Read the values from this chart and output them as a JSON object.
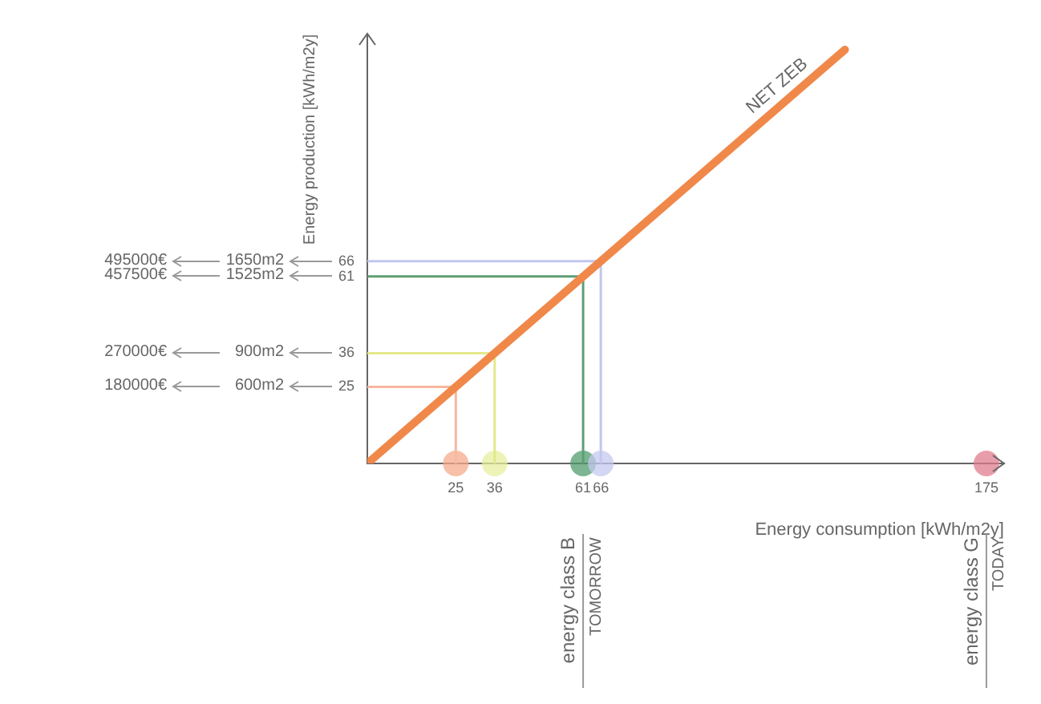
{
  "chart_data": {
    "type": "line",
    "xlabel": "Energy consumption [kWh/m2y]",
    "ylabel": "Energy production [kWh/m2y]",
    "xlim": [
      0,
      180
    ],
    "ylim": [
      0,
      140
    ],
    "xticks": [
      25,
      36,
      61,
      66,
      175
    ],
    "yticks": [
      25,
      36,
      61,
      66
    ],
    "marker": "none",
    "legend": false,
    "series": [
      {
        "name": "NET ZEB",
        "color": "#f0884a",
        "x": [
          0,
          135
        ],
        "values": [
          0,
          135
        ]
      },
      {
        "color": "#f6b8a0",
        "x": [
          25,
          25,
          0
        ],
        "values": [
          0,
          25,
          25
        ]
      },
      {
        "color": "#e3e98a",
        "x": [
          36,
          36,
          0
        ],
        "values": [
          0,
          36,
          36
        ]
      },
      {
        "color": "#5d9e74",
        "x": [
          61,
          61,
          0
        ],
        "values": [
          0,
          61,
          61
        ]
      },
      {
        "color": "#c3c6ee",
        "x": [
          66,
          66,
          0
        ],
        "values": [
          0,
          66,
          66
        ]
      },
      {
        "type": "scatter",
        "marker": "circle",
        "x": [
          25,
          36,
          61,
          66,
          175
        ],
        "values": [
          0,
          0,
          0,
          0,
          0
        ],
        "colors": [
          "#f5a98a",
          "#e6ee9c",
          "#4e9a6a",
          "#c5c8ee",
          "#e07b8b"
        ]
      }
    ],
    "ref_lines": [
      {
        "axis": "x",
        "value": 61,
        "label": "energy class B",
        "color": "#999999"
      },
      {
        "axis": "x",
        "value": 175,
        "label": "energy class G",
        "color": "#999999"
      }
    ],
    "annotations": [
      "495000€",
      "1650m2",
      "457500€",
      "1525m2",
      "270000€",
      "900m2",
      "180000€",
      "600m2",
      "TOMORROW",
      "TODAY"
    ]
  }
}
